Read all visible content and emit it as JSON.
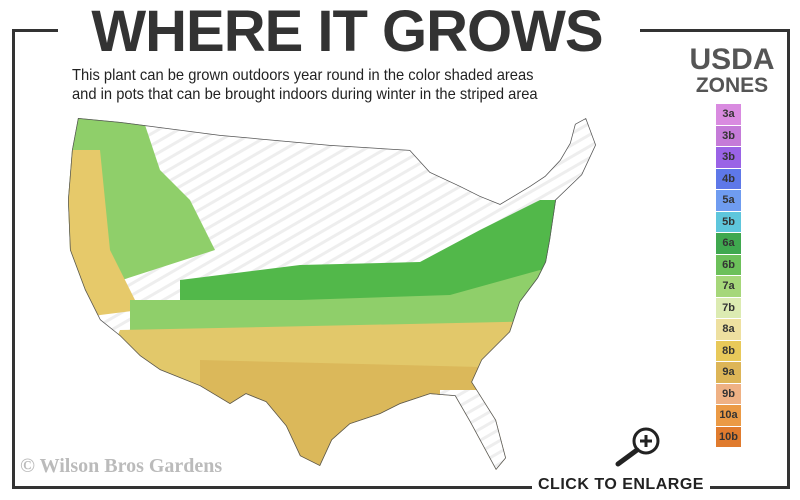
{
  "title": "WHERE IT GROWS",
  "subtitle": [
    "This plant can be grown outdoors year round in the color shaded areas",
    "and in pots that can be brought indoors during winter in the striped area"
  ],
  "legend": {
    "title_line1": "USDA",
    "title_line2": "ZONES",
    "zones": [
      {
        "label": "3a",
        "color": "#d98be0"
      },
      {
        "label": "3b",
        "color": "#c57bd8"
      },
      {
        "label": "3b",
        "color": "#9a63e6"
      },
      {
        "label": "4b",
        "color": "#5e78e8"
      },
      {
        "label": "5a",
        "color": "#6f9cf0"
      },
      {
        "label": "5b",
        "color": "#5ec6dc"
      },
      {
        "label": "6a",
        "color": "#3fa84f"
      },
      {
        "label": "6b",
        "color": "#6cc05a"
      },
      {
        "label": "7a",
        "color": "#a6d77a"
      },
      {
        "label": "7b",
        "color": "#dcebb2"
      },
      {
        "label": "8a",
        "color": "#eee0a0"
      },
      {
        "label": "8b",
        "color": "#e8c95a"
      },
      {
        "label": "9a",
        "color": "#ddb557"
      },
      {
        "label": "9b",
        "color": "#efb184"
      },
      {
        "label": "10a",
        "color": "#eb9a45"
      },
      {
        "label": "10b",
        "color": "#e07b2e"
      }
    ]
  },
  "copyright": "© Wilson Bros Gardens",
  "enlarge_label": "CLICK TO ENLARGE",
  "icons": {
    "enlarge": "magnifier-plus-icon"
  }
}
